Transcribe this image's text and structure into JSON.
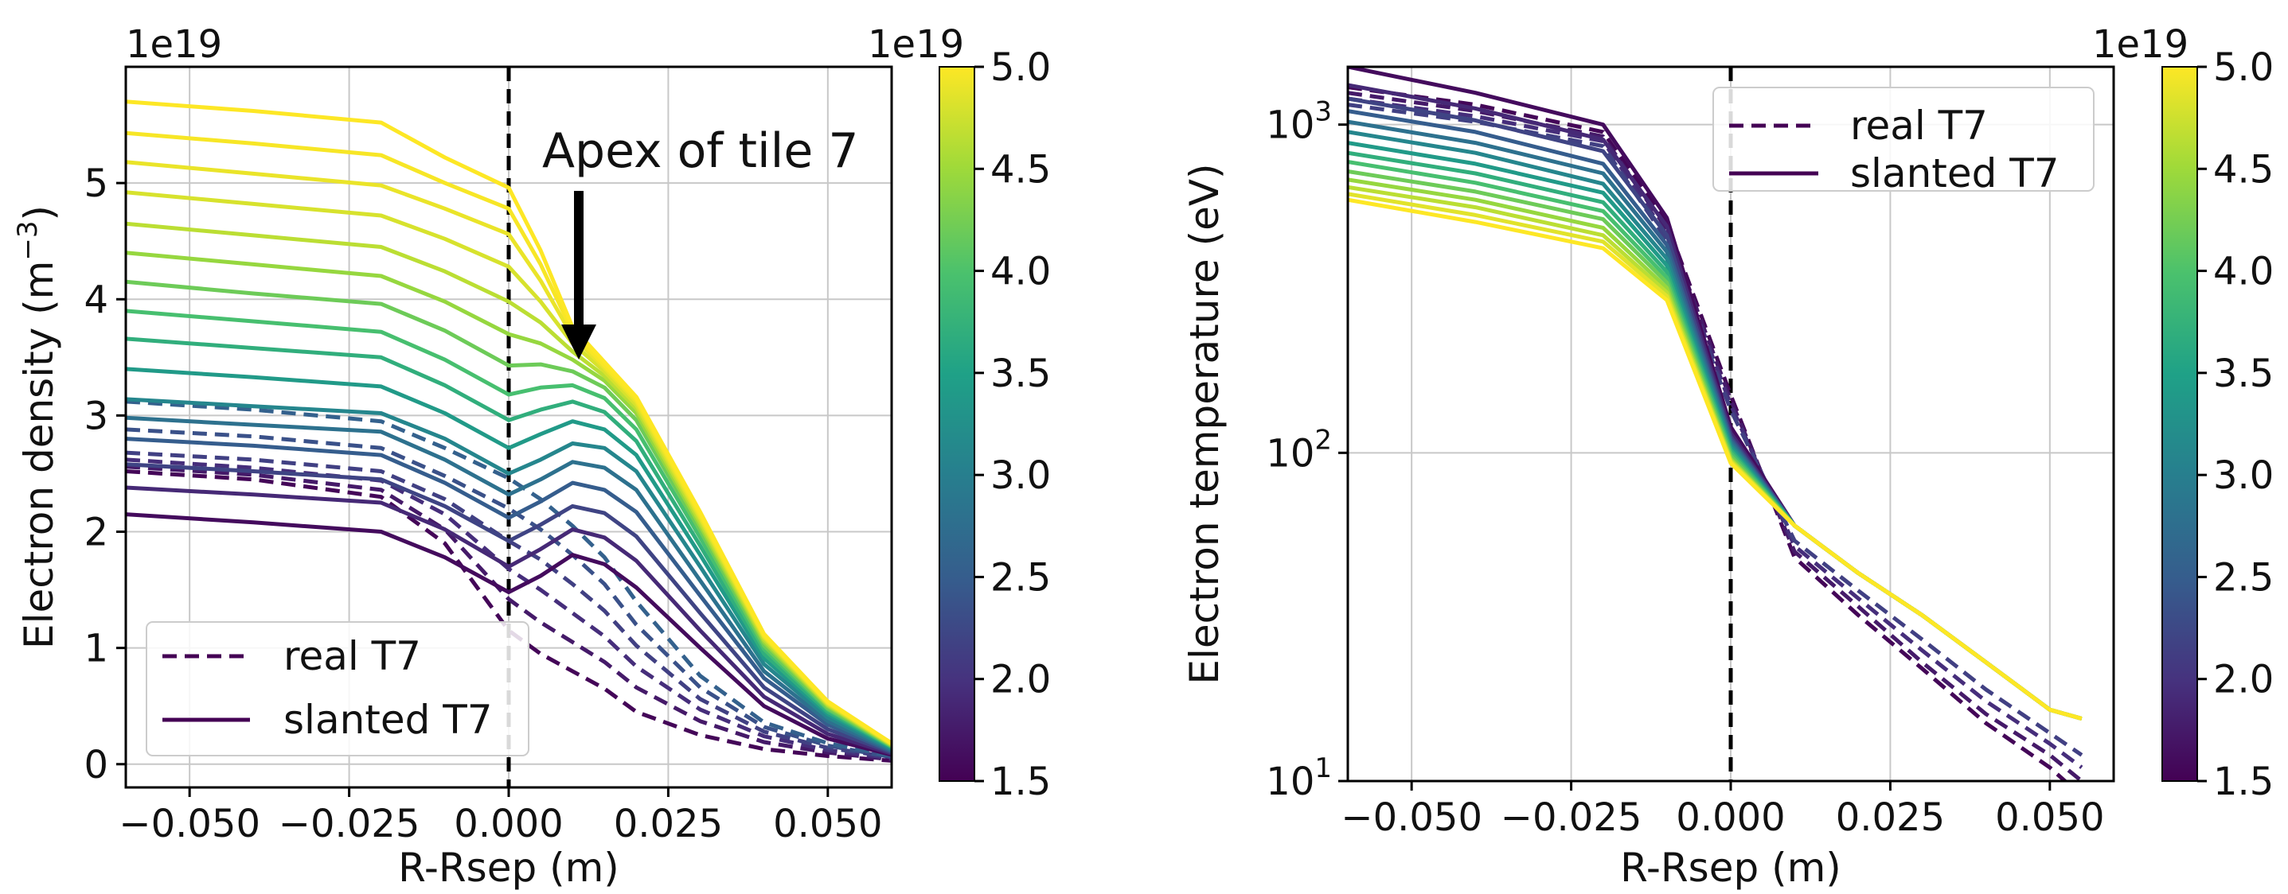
{
  "chart_data": [
    {
      "type": "line",
      "xlabel": "R-Rsep (m)",
      "ylabel": "Electron density (m$^{-3}$)",
      "ylabel_parts": [
        "Electron density (m",
        "−3",
        ")"
      ],
      "offset_text": "1e19",
      "xlim": [
        -0.06,
        0.06
      ],
      "ylim": [
        -0.2,
        6.0
      ],
      "yscale": "linear",
      "xticks": [
        -0.05,
        -0.025,
        0.0,
        0.025,
        0.05
      ],
      "xtick_labels": [
        "−0.050",
        "−0.025",
        "0.000",
        "0.025",
        "0.050"
      ],
      "yticks": [
        0,
        1,
        2,
        3,
        4,
        5
      ],
      "ytick_labels": [
        "0",
        "1",
        "2",
        "3",
        "4",
        "5"
      ],
      "grid": true,
      "separatrix_x": 0.0,
      "annotation": {
        "text": "Apex of tile 7",
        "x": 0.011,
        "y": 3.4
      },
      "legend": {
        "position": "lower-left",
        "entries": [
          "real T7",
          "slanted T7"
        ]
      },
      "colorbar": {
        "offset_text": "1e19",
        "vmin": 1.5,
        "vmax": 5.0,
        "ticks": [
          1.5,
          2.0,
          2.5,
          3.0,
          3.5,
          4.0,
          4.5,
          5.0
        ],
        "tick_labels": [
          "1.5",
          "2.0",
          "2.5",
          "3.0",
          "3.5",
          "4.0",
          "4.5",
          "5.0"
        ],
        "colormap": "viridis"
      },
      "series_style": {
        "real T7": "dashed",
        "slanted T7": "solid"
      },
      "x": [
        -0.06,
        -0.04,
        -0.02,
        -0.01,
        0.0,
        0.005,
        0.01,
        0.015,
        0.02,
        0.03,
        0.04,
        0.05,
        0.06
      ],
      "series": [
        {
          "line": "dashed",
          "level": 1.55,
          "values": [
            2.52,
            2.45,
            2.3,
            1.9,
            1.15,
            0.95,
            0.8,
            0.65,
            0.45,
            0.25,
            0.13,
            0.07,
            0.03
          ]
        },
        {
          "line": "dashed",
          "level": 1.75,
          "values": [
            2.56,
            2.49,
            2.36,
            2.02,
            1.42,
            1.22,
            1.05,
            0.88,
            0.66,
            0.37,
            0.19,
            0.1,
            0.04
          ]
        },
        {
          "line": "dashed",
          "level": 1.95,
          "values": [
            2.62,
            2.55,
            2.44,
            2.15,
            1.68,
            1.5,
            1.3,
            1.1,
            0.84,
            0.47,
            0.24,
            0.12,
            0.05
          ]
        },
        {
          "line": "dashed",
          "level": 2.15,
          "values": [
            2.68,
            2.62,
            2.52,
            2.28,
            1.92,
            1.76,
            1.55,
            1.32,
            1.02,
            0.56,
            0.28,
            0.14,
            0.06
          ]
        },
        {
          "line": "dashed",
          "level": 2.35,
          "values": [
            2.88,
            2.82,
            2.72,
            2.48,
            2.2,
            2.02,
            1.8,
            1.55,
            1.2,
            0.66,
            0.32,
            0.16,
            0.06
          ]
        },
        {
          "line": "dashed",
          "level": 2.55,
          "values": [
            3.12,
            3.05,
            2.95,
            2.72,
            2.46,
            2.28,
            2.05,
            1.78,
            1.4,
            0.76,
            0.36,
            0.18,
            0.07
          ]
        },
        {
          "line": "solid",
          "level": 1.6,
          "values": [
            2.15,
            2.08,
            2.0,
            1.78,
            1.48,
            1.62,
            1.8,
            1.72,
            1.52,
            1.0,
            0.5,
            0.22,
            0.08
          ]
        },
        {
          "line": "solid",
          "level": 1.9,
          "values": [
            2.38,
            2.32,
            2.25,
            2.02,
            1.7,
            1.85,
            2.02,
            1.95,
            1.75,
            1.15,
            0.58,
            0.26,
            0.09
          ]
        },
        {
          "line": "solid",
          "level": 2.2,
          "values": [
            2.58,
            2.52,
            2.45,
            2.22,
            1.92,
            2.06,
            2.22,
            2.16,
            1.96,
            1.3,
            0.66,
            0.3,
            0.1
          ]
        },
        {
          "line": "solid",
          "level": 2.5,
          "values": [
            2.8,
            2.74,
            2.66,
            2.42,
            2.12,
            2.26,
            2.42,
            2.36,
            2.17,
            1.45,
            0.74,
            0.34,
            0.11
          ]
        },
        {
          "line": "solid",
          "level": 2.8,
          "values": [
            2.98,
            2.92,
            2.86,
            2.62,
            2.32,
            2.45,
            2.6,
            2.55,
            2.36,
            1.58,
            0.8,
            0.37,
            0.12
          ]
        },
        {
          "line": "solid",
          "level": 3.1,
          "values": [
            3.14,
            3.08,
            3.02,
            2.8,
            2.5,
            2.62,
            2.76,
            2.72,
            2.52,
            1.7,
            0.86,
            0.4,
            0.13
          ]
        },
        {
          "line": "solid",
          "level": 3.4,
          "values": [
            3.4,
            3.33,
            3.25,
            3.02,
            2.72,
            2.84,
            2.95,
            2.88,
            2.66,
            1.8,
            0.91,
            0.43,
            0.14
          ]
        },
        {
          "line": "solid",
          "level": 3.7,
          "values": [
            3.66,
            3.58,
            3.5,
            3.26,
            2.96,
            3.05,
            3.12,
            3.03,
            2.78,
            1.88,
            0.95,
            0.45,
            0.15
          ]
        },
        {
          "line": "solid",
          "level": 3.95,
          "values": [
            3.9,
            3.81,
            3.72,
            3.48,
            3.18,
            3.24,
            3.26,
            3.15,
            2.88,
            1.95,
            0.99,
            0.47,
            0.15
          ]
        },
        {
          "line": "solid",
          "level": 4.2,
          "values": [
            4.15,
            4.05,
            3.96,
            3.73,
            3.43,
            3.44,
            3.38,
            3.24,
            2.96,
            2.01,
            1.02,
            0.48,
            0.16
          ]
        },
        {
          "line": "solid",
          "level": 4.45,
          "values": [
            4.4,
            4.3,
            4.2,
            3.98,
            3.7,
            3.62,
            3.48,
            3.3,
            3.02,
            2.05,
            1.05,
            0.5,
            0.16
          ]
        },
        {
          "line": "solid",
          "level": 4.65,
          "values": [
            4.65,
            4.55,
            4.45,
            4.24,
            3.98,
            3.8,
            3.55,
            3.34,
            3.06,
            2.08,
            1.07,
            0.51,
            0.17
          ]
        },
        {
          "line": "solid",
          "level": 4.8,
          "values": [
            4.92,
            4.82,
            4.72,
            4.52,
            4.28,
            3.98,
            3.62,
            3.38,
            3.09,
            2.11,
            1.09,
            0.52,
            0.17
          ]
        },
        {
          "line": "solid",
          "level": 4.9,
          "values": [
            5.18,
            5.08,
            4.98,
            4.78,
            4.56,
            4.16,
            3.68,
            3.41,
            3.12,
            2.13,
            1.1,
            0.53,
            0.18
          ]
        },
        {
          "line": "solid",
          "level": 4.97,
          "values": [
            5.43,
            5.34,
            5.24,
            5.0,
            4.78,
            4.3,
            3.72,
            3.43,
            3.14,
            2.15,
            1.11,
            0.53,
            0.18
          ]
        },
        {
          "line": "solid",
          "level": 5.0,
          "values": [
            5.7,
            5.62,
            5.52,
            5.22,
            4.96,
            4.42,
            3.76,
            3.46,
            3.16,
            2.17,
            1.12,
            0.54,
            0.18
          ]
        }
      ]
    },
    {
      "type": "line",
      "xlabel": "R-Rsep (m)",
      "ylabel": "Electron temperature (eV)",
      "offset_text": "",
      "xlim": [
        -0.06,
        0.06
      ],
      "ylim": [
        10,
        1500
      ],
      "yscale": "log",
      "xticks": [
        -0.05,
        -0.025,
        0.0,
        0.025,
        0.05
      ],
      "xtick_labels": [
        "−0.050",
        "−0.025",
        "0.000",
        "0.025",
        "0.050"
      ],
      "yticks": [
        10,
        100,
        1000
      ],
      "ytick_labels": [
        [
          "10",
          "1"
        ],
        [
          "10",
          "2"
        ],
        [
          "10",
          "3"
        ]
      ],
      "grid": true,
      "separatrix_x": 0.0,
      "legend": {
        "position": "top-right",
        "entries": [
          "real T7",
          "slanted T7"
        ]
      },
      "colorbar": {
        "offset_text": "1e19",
        "vmin": 1.5,
        "vmax": 5.0,
        "ticks": [
          1.5,
          2.0,
          2.5,
          3.0,
          3.5,
          4.0,
          4.5,
          5.0
        ],
        "tick_labels": [
          "1.5",
          "2.0",
          "2.5",
          "3.0",
          "3.5",
          "4.0",
          "4.5",
          "5.0"
        ],
        "colormap": "viridis"
      },
      "series_style": {
        "real T7": "dashed",
        "slanted T7": "solid"
      },
      "x": [
        -0.06,
        -0.04,
        -0.02,
        -0.01,
        0.0,
        0.01,
        0.02,
        0.03,
        0.04,
        0.05,
        0.055
      ],
      "series": [
        {
          "line": "dashed",
          "level": 1.55,
          "values": [
            1300,
            1150,
            950,
            500,
            150,
            48,
            32,
            22,
            15,
            11,
            9
          ]
        },
        {
          "line": "dashed",
          "level": 1.75,
          "values": [
            1250,
            1100,
            920,
            480,
            145,
            50,
            34,
            23,
            16,
            12,
            10
          ]
        },
        {
          "line": "dashed",
          "level": 1.95,
          "values": [
            1200,
            1060,
            890,
            460,
            140,
            52,
            36,
            25,
            17.5,
            13,
            11
          ]
        },
        {
          "line": "dashed",
          "level": 2.15,
          "values": [
            1150,
            1020,
            860,
            445,
            135,
            54,
            38,
            27,
            19,
            14,
            12
          ]
        },
        {
          "line": "solid",
          "level": 1.6,
          "values": [
            1500,
            1250,
            1000,
            520,
            120,
            60,
            43,
            32,
            23,
            16.5,
            15.5
          ]
        },
        {
          "line": "solid",
          "level": 1.9,
          "values": [
            1320,
            1120,
            900,
            490,
            115,
            60,
            43,
            32,
            23,
            16.5,
            15.5
          ]
        },
        {
          "line": "solid",
          "level": 2.2,
          "values": [
            1200,
            1030,
            830,
            460,
            112,
            60,
            43,
            32,
            23,
            16.5,
            15.5
          ]
        },
        {
          "line": "solid",
          "level": 2.5,
          "values": [
            1100,
            950,
            760,
            430,
            110,
            60,
            43,
            32,
            23,
            16.5,
            15.5
          ]
        },
        {
          "line": "solid",
          "level": 2.8,
          "values": [
            1020,
            880,
            710,
            410,
            108,
            60,
            43,
            32,
            23,
            16.5,
            15.5
          ]
        },
        {
          "line": "solid",
          "level": 3.1,
          "values": [
            950,
            820,
            660,
            390,
            106,
            60,
            43,
            32,
            23,
            16.5,
            15.5
          ]
        },
        {
          "line": "solid",
          "level": 3.4,
          "values": [
            880,
            760,
            620,
            372,
            104,
            60,
            43,
            32,
            23,
            16.5,
            15.5
          ]
        },
        {
          "line": "solid",
          "level": 3.7,
          "values": [
            820,
            710,
            580,
            356,
            102,
            60,
            43,
            32,
            23,
            16.5,
            15.5
          ]
        },
        {
          "line": "solid",
          "level": 3.95,
          "values": [
            770,
            665,
            545,
            342,
            100,
            60,
            43,
            32,
            23,
            16.5,
            15.5
          ]
        },
        {
          "line": "solid",
          "level": 4.2,
          "values": [
            720,
            625,
            515,
            330,
            98,
            60,
            43,
            32,
            23,
            16.5,
            15.5
          ]
        },
        {
          "line": "solid",
          "level": 4.45,
          "values": [
            680,
            590,
            485,
            318,
            96,
            60,
            43,
            32,
            23,
            16.5,
            15.5
          ]
        },
        {
          "line": "solid",
          "level": 4.65,
          "values": [
            645,
            560,
            460,
            308,
            95,
            60,
            43,
            32,
            23,
            16.5,
            15.5
          ]
        },
        {
          "line": "solid",
          "level": 4.85,
          "values": [
            615,
            530,
            440,
            300,
            94,
            60,
            43,
            32,
            23,
            16.5,
            15.5
          ]
        },
        {
          "line": "solid",
          "level": 5.0,
          "values": [
            590,
            505,
            420,
            292,
            93,
            60,
            43,
            32,
            23,
            16.5,
            15.5
          ]
        }
      ]
    }
  ]
}
